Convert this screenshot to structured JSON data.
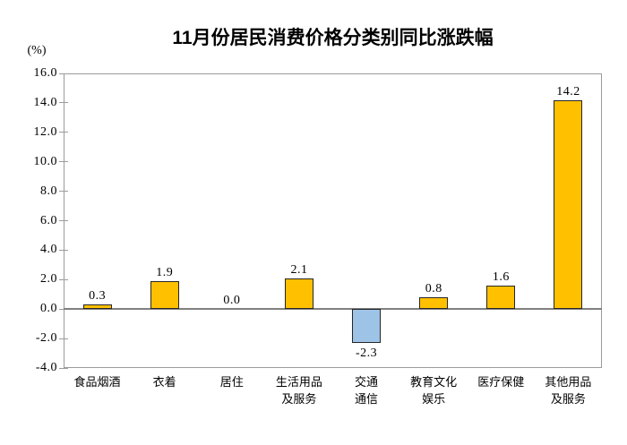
{
  "chart_data": {
    "type": "bar",
    "title": "11月份居民消费价格分类别同比涨跌幅",
    "unit_label": "(%)",
    "categories": [
      "食品烟酒",
      "衣着",
      "居住",
      "生活用品\n及服务",
      "交通\n通信",
      "教育文化\n娱乐",
      "医疗保健",
      "其他用品\n及服务"
    ],
    "values": [
      0.3,
      1.9,
      0.0,
      2.1,
      -2.3,
      0.8,
      1.6,
      14.2
    ],
    "value_labels": [
      "0.3",
      "1.9",
      "0.0",
      "2.1",
      "-2.3",
      "0.8",
      "1.6",
      "14.2"
    ],
    "xlabel": "",
    "ylabel": "(%)",
    "ylim": [
      -4.0,
      16.0
    ],
    "ytick_step": 2.0,
    "ytick_labels": [
      "16.0",
      "14.0",
      "12.0",
      "10.0",
      "8.0",
      "6.0",
      "4.0",
      "2.0",
      "0.0",
      "-2.0",
      "-4.0"
    ],
    "grid": false,
    "legend": null,
    "colors": {
      "positive_bar": "#FFC000",
      "negative_bar": "#9DC3E6",
      "bar_border": "#262626",
      "axis_frame": "#9B9B9B",
      "zero_line": "#808080",
      "text": "#000000",
      "background": "#FFFFFF"
    }
  }
}
